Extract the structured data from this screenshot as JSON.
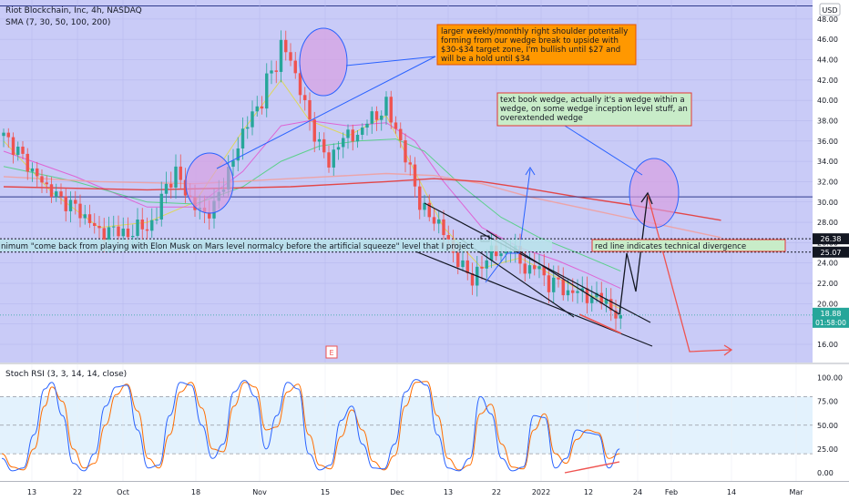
{
  "header": {
    "symbol": "Riot Blockchain, Inc, 4h, NASDAQ",
    "sma": "SMA (7, 30, 50, 100, 200)",
    "currency": "USD"
  },
  "price_axis": {
    "ticks": [
      "48.00",
      "46.00",
      "44.00",
      "42.00",
      "40.00",
      "38.00",
      "36.00",
      "34.00",
      "32.00",
      "30.00",
      "28.00",
      "26.00",
      "24.00",
      "22.00",
      "20.00",
      "18.00",
      "16.00"
    ],
    "badges": [
      {
        "text": "26.38",
        "color": "#131722"
      },
      {
        "text": "25.07",
        "color": "#131722"
      }
    ],
    "last_price": "18.88",
    "countdown": "01:58:00",
    "last_color": "#26a69a"
  },
  "time_axis": [
    "13",
    "22",
    "Oct",
    "18",
    "Nov",
    "15",
    "Dec",
    "13",
    "22",
    "2022",
    "12",
    "24",
    "Feb",
    "14",
    "Mar"
  ],
  "stoch": {
    "label": "Stoch RSI (3, 3, 14, 14, close)",
    "ticks": [
      "100.00",
      "75.00",
      "50.00",
      "25.00",
      "0.00"
    ]
  },
  "annotations": {
    "orange_note": "larger weekly/monthly right shoulder potentally forming from our wedge break to upside with $30-$34 target zone, I'm bullish until $27 and will be a hold until $34",
    "green_note": "text book wedge, actually it's a wedge within a wedge, on some wedge inception level stuff, an overextended wedge",
    "band_note": "nimum \"come back from playing with Elon Musk on Mars level normalcy before the artificial squeeze\" level that I project",
    "divergence_note": "red line indicates technical divergence",
    "earnings_marker": "E"
  },
  "colors": {
    "background": "#c9cbf7",
    "up": "#26a69a",
    "down": "#ef5350",
    "sma7": "#e0d84a",
    "sma30": "#e05ad0",
    "sma50": "#50d080",
    "sma100": "#f0a0a0",
    "sma200": "#e53935",
    "stoch_k": "#2962ff",
    "stoch_d": "#ff6d00",
    "orange_box": "#ff9800",
    "green_box": "#c8ecc8"
  },
  "chart_data": {
    "type": "candlestick",
    "title": "Riot Blockchain, Inc, 4h, NASDAQ",
    "ylim": [
      15,
      49
    ],
    "y_ticks": [
      16,
      18,
      20,
      22,
      24,
      26,
      28,
      30,
      32,
      34,
      36,
      38,
      40,
      42,
      44,
      46,
      48
    ],
    "x_ticks": [
      "13",
      "22",
      "Oct",
      "18",
      "Nov",
      "15",
      "Dec",
      "13",
      "22",
      "2022",
      "12",
      "24",
      "Feb",
      "14",
      "Mar"
    ],
    "price_path": [
      [
        0,
        36.5
      ],
      [
        3,
        35
      ],
      [
        6,
        33
      ],
      [
        9,
        31.5
      ],
      [
        12,
        30.2
      ],
      [
        15,
        29.5
      ],
      [
        18,
        28
      ],
      [
        21,
        26.8
      ],
      [
        24,
        27.5
      ],
      [
        26,
        26.3
      ],
      [
        28,
        28
      ],
      [
        30,
        27
      ],
      [
        32,
        29
      ],
      [
        34,
        31.5
      ],
      [
        36,
        33
      ],
      [
        38,
        31
      ],
      [
        40,
        29.5
      ],
      [
        42,
        28.8
      ],
      [
        44,
        29.5
      ],
      [
        46,
        32
      ],
      [
        48,
        34
      ],
      [
        50,
        37
      ],
      [
        52,
        38.5
      ],
      [
        54,
        40
      ],
      [
        55,
        42
      ],
      [
        57,
        43.5
      ],
      [
        58,
        45.5
      ],
      [
        60,
        44
      ],
      [
        62,
        41
      ],
      [
        64,
        38
      ],
      [
        66,
        35.5
      ],
      [
        68,
        34
      ],
      [
        70,
        35.5
      ],
      [
        72,
        37
      ],
      [
        74,
        36
      ],
      [
        76,
        38.5
      ],
      [
        78,
        38
      ],
      [
        80,
        40
      ],
      [
        81,
        38
      ],
      [
        83,
        36
      ],
      [
        85,
        33
      ],
      [
        87,
        30
      ],
      [
        89,
        28.5
      ],
      [
        91,
        28
      ],
      [
        92,
        27
      ],
      [
        94,
        25
      ],
      [
        96,
        23.5
      ],
      [
        98,
        22.5
      ],
      [
        100,
        23.5
      ],
      [
        102,
        25.5
      ],
      [
        104,
        24.5
      ],
      [
        106,
        25.8
      ],
      [
        108,
        24
      ],
      [
        110,
        23.2
      ],
      [
        112,
        23.8
      ],
      [
        114,
        21.5
      ],
      [
        116,
        22.5
      ],
      [
        118,
        20.5
      ],
      [
        120,
        21.8
      ],
      [
        122,
        20.2
      ],
      [
        124,
        21
      ],
      [
        126,
        19.8
      ],
      [
        128,
        19.2
      ],
      [
        129,
        18.88
      ]
    ],
    "series": [
      {
        "name": "SMA 7",
        "points": [
          [
            0,
            36
          ],
          [
            10,
            31
          ],
          [
            20,
            27.5
          ],
          [
            30,
            28
          ],
          [
            40,
            30
          ],
          [
            50,
            37
          ],
          [
            58,
            42
          ],
          [
            64,
            38
          ],
          [
            72,
            36.5
          ],
          [
            80,
            38.5
          ],
          [
            86,
            33
          ],
          [
            92,
            27.5
          ],
          [
            100,
            23.5
          ],
          [
            108,
            24.5
          ],
          [
            116,
            22.5
          ],
          [
            122,
            21
          ],
          [
            129,
            19.5
          ]
        ]
      },
      {
        "name": "SMA 30",
        "points": [
          [
            0,
            35
          ],
          [
            15,
            32.5
          ],
          [
            30,
            29.5
          ],
          [
            40,
            29.5
          ],
          [
            50,
            33
          ],
          [
            58,
            37.5
          ],
          [
            64,
            38
          ],
          [
            72,
            37.5
          ],
          [
            80,
            37.8
          ],
          [
            86,
            36
          ],
          [
            92,
            32
          ],
          [
            100,
            27.5
          ],
          [
            108,
            25.5
          ],
          [
            116,
            24.2
          ],
          [
            122,
            23
          ],
          [
            129,
            21.5
          ]
        ]
      },
      {
        "name": "SMA 50",
        "points": [
          [
            0,
            33.5
          ],
          [
            15,
            32
          ],
          [
            30,
            30
          ],
          [
            40,
            29.8
          ],
          [
            50,
            31.5
          ],
          [
            58,
            34
          ],
          [
            66,
            35.5
          ],
          [
            74,
            36
          ],
          [
            82,
            36.2
          ],
          [
            88,
            35
          ],
          [
            96,
            31.5
          ],
          [
            104,
            28.5
          ],
          [
            112,
            26.5
          ],
          [
            120,
            25
          ],
          [
            129,
            23.2
          ]
        ]
      },
      {
        "name": "SMA 100",
        "points": [
          [
            0,
            32.5
          ],
          [
            20,
            32
          ],
          [
            40,
            31.8
          ],
          [
            60,
            32.3
          ],
          [
            80,
            32.8
          ],
          [
            90,
            32.6
          ],
          [
            100,
            31.8
          ],
          [
            110,
            30.5
          ],
          [
            120,
            29.5
          ],
          [
            130,
            28.5
          ],
          [
            140,
            27.5
          ],
          [
            150,
            26.5
          ]
        ]
      },
      {
        "name": "SMA 200",
        "points": [
          [
            0,
            31.5
          ],
          [
            30,
            31.2
          ],
          [
            60,
            31.5
          ],
          [
            80,
            32
          ],
          [
            90,
            32.3
          ],
          [
            100,
            32
          ],
          [
            110,
            31.3
          ],
          [
            120,
            30.5
          ],
          [
            130,
            29.8
          ],
          [
            140,
            29
          ],
          [
            150,
            28.2
          ]
        ]
      }
    ],
    "horizontal_levels": [
      {
        "value": 30.5,
        "style": "solid",
        "color": "#2f3a8c"
      },
      {
        "value": 26.38,
        "style": "dotted",
        "color": "#131722"
      },
      {
        "value": 25.07,
        "style": "dotted",
        "color": "#131722"
      }
    ],
    "stoch_rsi": {
      "ylim": [
        -8,
        108
      ],
      "bands": [
        80,
        50,
        20
      ],
      "k": [
        [
          0,
          15
        ],
        [
          3,
          2
        ],
        [
          6,
          5
        ],
        [
          9,
          40
        ],
        [
          12,
          88
        ],
        [
          14,
          95
        ],
        [
          17,
          60
        ],
        [
          20,
          10
        ],
        [
          23,
          2
        ],
        [
          26,
          20
        ],
        [
          29,
          70
        ],
        [
          32,
          90
        ],
        [
          35,
          92
        ],
        [
          38,
          45
        ],
        [
          41,
          5
        ],
        [
          44,
          8
        ],
        [
          47,
          60
        ],
        [
          50,
          95
        ],
        [
          53,
          92
        ],
        [
          56,
          50
        ],
        [
          59,
          15
        ],
        [
          62,
          30
        ],
        [
          65,
          85
        ],
        [
          68,
          97
        ],
        [
          71,
          80
        ],
        [
          74,
          25
        ],
        [
          77,
          60
        ],
        [
          80,
          95
        ],
        [
          83,
          88
        ],
        [
          86,
          20
        ],
        [
          89,
          3
        ],
        [
          92,
          8
        ],
        [
          95,
          55
        ],
        [
          98,
          70
        ],
        [
          101,
          30
        ],
        [
          104,
          5
        ],
        [
          107,
          4
        ],
        [
          110,
          30
        ],
        [
          113,
          85
        ],
        [
          116,
          98
        ],
        [
          119,
          92
        ],
        [
          122,
          40
        ],
        [
          125,
          5
        ],
        [
          128,
          2
        ],
        [
          131,
          15
        ],
        [
          134,
          80
        ],
        [
          137,
          62
        ],
        [
          140,
          15
        ],
        [
          143,
          2
        ],
        [
          146,
          6
        ],
        [
          149,
          60
        ],
        [
          152,
          58
        ],
        [
          155,
          5
        ],
        [
          158,
          15
        ],
        [
          161,
          45
        ],
        [
          164,
          42
        ],
        [
          167,
          40
        ],
        [
          170,
          5
        ],
        [
          173,
          25
        ]
      ],
      "d": [
        [
          0,
          20
        ],
        [
          3,
          6
        ],
        [
          6,
          3
        ],
        [
          9,
          25
        ],
        [
          12,
          70
        ],
        [
          14,
          90
        ],
        [
          17,
          75
        ],
        [
          20,
          25
        ],
        [
          23,
          5
        ],
        [
          26,
          10
        ],
        [
          29,
          50
        ],
        [
          32,
          82
        ],
        [
          35,
          93
        ],
        [
          38,
          65
        ],
        [
          41,
          15
        ],
        [
          44,
          5
        ],
        [
          47,
          40
        ],
        [
          50,
          85
        ],
        [
          53,
          95
        ],
        [
          56,
          68
        ],
        [
          59,
          25
        ],
        [
          62,
          22
        ],
        [
          65,
          70
        ],
        [
          68,
          95
        ],
        [
          71,
          90
        ],
        [
          74,
          45
        ],
        [
          77,
          48
        ],
        [
          80,
          85
        ],
        [
          83,
          93
        ],
        [
          86,
          40
        ],
        [
          89,
          8
        ],
        [
          92,
          4
        ],
        [
          95,
          38
        ],
        [
          98,
          66
        ],
        [
          101,
          45
        ],
        [
          104,
          12
        ],
        [
          107,
          3
        ],
        [
          110,
          18
        ],
        [
          113,
          70
        ],
        [
          116,
          95
        ],
        [
          119,
          96
        ],
        [
          122,
          60
        ],
        [
          125,
          15
        ],
        [
          128,
          3
        ],
        [
          131,
          8
        ],
        [
          134,
          62
        ],
        [
          137,
          72
        ],
        [
          140,
          30
        ],
        [
          143,
          6
        ],
        [
          146,
          4
        ],
        [
          149,
          45
        ],
        [
          152,
          62
        ],
        [
          155,
          20
        ],
        [
          158,
          10
        ],
        [
          161,
          35
        ],
        [
          164,
          45
        ],
        [
          167,
          42
        ],
        [
          170,
          15
        ],
        [
          173,
          20
        ]
      ]
    }
  }
}
